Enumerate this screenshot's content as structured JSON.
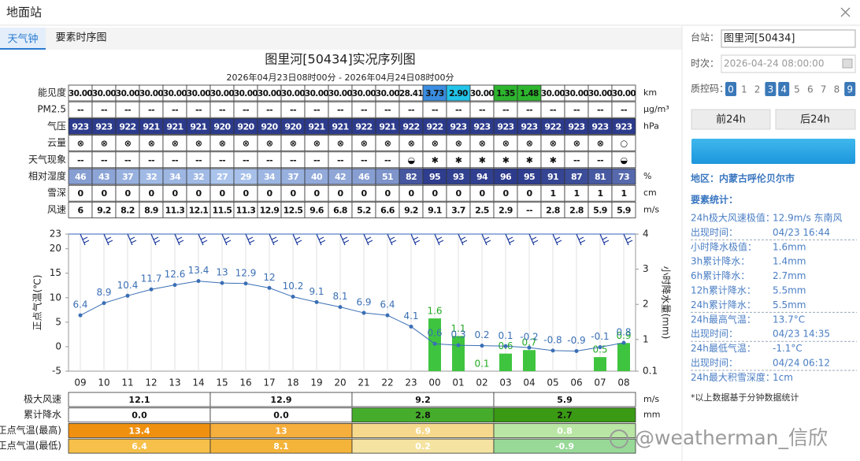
{
  "window": {
    "title": "地面站"
  },
  "tabs": [
    "天气钟",
    "要素时序图"
  ],
  "element_table": {
    "rows": [
      {
        "label": "能见度",
        "unit": "km",
        "values": [
          "30.00",
          "30.00",
          "30.00",
          "30.00",
          "30.00",
          "30.00",
          "30.00",
          "30.00",
          "30.00",
          "30.00",
          "30.00",
          "30.00",
          "30.00",
          "30.00",
          "28.41",
          "3.73",
          "2.90",
          "30.00",
          "1.35",
          "1.48",
          "30.00",
          "30.00",
          "30.00",
          "30.00"
        ]
      },
      {
        "label": "PM2.5",
        "unit": "μg/m³",
        "values": [
          "--",
          "--",
          "--",
          "--",
          "--",
          "--",
          "--",
          "--",
          "--",
          "--",
          "--",
          "--",
          "--",
          "--",
          "--",
          "--",
          "--",
          "--",
          "--",
          "--",
          "--",
          "--",
          "--",
          "--"
        ]
      },
      {
        "label": "气压",
        "unit": "hPa",
        "values": [
          "923",
          "923",
          "922",
          "921",
          "921",
          "921",
          "920",
          "920",
          "920",
          "920",
          "921",
          "921",
          "922",
          "921",
          "922",
          "922",
          "923",
          "923",
          "923",
          "923",
          "922",
          "923",
          "923",
          "923"
        ]
      },
      {
        "label": "云量",
        "values": [
          "⊗",
          "⊗",
          "⊗",
          "⊗",
          "⊗",
          "⊗",
          "⊗",
          "⊗",
          "⊗",
          "⊗",
          "⊗",
          "⊗",
          "⊗",
          "⊗",
          "⊗",
          "⊗",
          "⊗",
          "⊗",
          "⊗",
          "⊗",
          "⊗",
          "⊗",
          "⊗",
          "○"
        ]
      },
      {
        "label": "天气现象",
        "values": [
          "--",
          "--",
          "--",
          "--",
          "--",
          "--",
          "--",
          "--",
          "--",
          "--",
          "--",
          "--",
          "--",
          "--",
          "◒",
          "✱",
          "✱",
          "✱",
          "✱",
          "✱",
          "✱",
          "--",
          "--",
          "◒"
        ]
      },
      {
        "label": "相对湿度",
        "unit": "%",
        "values": [
          "46",
          "43",
          "37",
          "32",
          "34",
          "32",
          "27",
          "29",
          "34",
          "37",
          "40",
          "42",
          "46",
          "51",
          "82",
          "95",
          "93",
          "94",
          "96",
          "95",
          "91",
          "87",
          "81",
          "73"
        ]
      },
      {
        "label": "雪深",
        "unit": "cm",
        "values": [
          "0",
          "0",
          "0",
          "0",
          "0",
          "0",
          "0",
          "0",
          "0",
          "0",
          "0",
          "0",
          "0",
          "0",
          "0",
          "0",
          "0",
          "0",
          "0",
          "0",
          "1",
          "1",
          "1",
          "1"
        ]
      },
      {
        "label": "风速",
        "unit": "m/s",
        "values": [
          "6",
          "9.2",
          "8.2",
          "8.9",
          "11.3",
          "12.1",
          "11.5",
          "11.3",
          "12.9",
          "12.5",
          "9.6",
          "6.8",
          "5.2",
          "6.6",
          "9.2",
          "9.1",
          "3.7",
          "2.5",
          "2.9",
          "--",
          "2.8",
          "2.8",
          "5.9",
          "5.9"
        ]
      }
    ]
  },
  "chart_data": {
    "type": "line",
    "title": "图里河[50434]实况序列图",
    "subtitle": "2026年04月23日08时00分 - 2026年04月24日08时00分",
    "categories": [
      "09",
      "10",
      "11",
      "12",
      "13",
      "14",
      "15",
      "16",
      "17",
      "18",
      "19",
      "20",
      "21",
      "22",
      "23",
      "00",
      "01",
      "02",
      "03",
      "04",
      "05",
      "06",
      "07",
      "08"
    ],
    "ylabel": "正点气温(℃)",
    "y2label": "小时降水量(mm)",
    "ylim": [
      -5,
      23
    ],
    "yticks": [
      -5,
      0,
      5,
      10,
      15,
      20,
      23
    ],
    "y2lim": [
      0.1,
      4
    ],
    "y2ticks": [
      0.1,
      1,
      2,
      3,
      4
    ],
    "grid": true,
    "series": [
      {
        "type": "line",
        "color": "#3a6fb5",
        "values": [
          6.4,
          8.9,
          10.4,
          11.7,
          12.6,
          13.4,
          13,
          12.9,
          12,
          10.2,
          9.1,
          8.1,
          6.9,
          6.4,
          4.1,
          0.6,
          0.3,
          0.2,
          0.1,
          -0.2,
          -0.8,
          -0.9,
          -0.1,
          0.8
        ]
      },
      {
        "type": "bar",
        "axis": "y2",
        "color": "#3fc43f",
        "values": [
          null,
          null,
          null,
          null,
          null,
          null,
          null,
          null,
          null,
          null,
          null,
          null,
          null,
          null,
          null,
          1.6,
          1.1,
          0.1,
          0.6,
          0.7,
          null,
          null,
          0.5,
          0.9
        ]
      }
    ]
  },
  "summary_table": {
    "rows": [
      {
        "label": "极大风速",
        "unit": "m/s",
        "values": [
          "12.1",
          "12.9",
          "9.2",
          "5.9"
        ],
        "colors": [
          "#ffffff",
          "#ffffff",
          "#ffffff",
          "#ffffff"
        ]
      },
      {
        "label": "累计降水",
        "unit": "mm",
        "values": [
          "0.0",
          "0.0",
          "2.8",
          "2.7"
        ],
        "colors": [
          "#ffffff",
          "#ffffff",
          "#46ad2c",
          "#3a9a14"
        ]
      },
      {
        "label": "正点气温(最高)",
        "values": [
          "13.4",
          "13",
          "6.9",
          "0.8"
        ],
        "colors": [
          "#f0900f",
          "#f6ae3c",
          "#f6d98c",
          "#b9e6a4"
        ]
      },
      {
        "label": "正点气温(最低)",
        "values": [
          "6.4",
          "8.1",
          "0.2",
          "-0.9"
        ],
        "colors": [
          "#f6c04a",
          "#f4b43a",
          "#f5e3a2",
          "#98d998"
        ]
      }
    ]
  },
  "sidebar": {
    "station_label": "台站：",
    "station": "图里河[50434]",
    "time_label": "时次：",
    "time": "2026-04-24 08:00:00",
    "qc_label": "质控码：",
    "qc_codes": [
      {
        "label": "0",
        "active": true
      },
      {
        "label": "1",
        "active": false
      },
      {
        "label": "2",
        "active": false
      },
      {
        "label": "3",
        "active": true
      },
      {
        "label": "4",
        "active": true
      },
      {
        "label": "5",
        "active": false
      },
      {
        "label": "6",
        "active": false
      },
      {
        "label": "7",
        "active": false
      },
      {
        "label": "8",
        "active": false
      },
      {
        "label": "9",
        "active": true
      }
    ],
    "buttons": [
      "前24h",
      "后24h"
    ],
    "region": "地区：内蒙古呼伦贝尔市",
    "stats_title": "要素统计：",
    "stats": [
      {
        "label": "24h极大风速极值：",
        "value": "12.9m/s 东南风"
      },
      {
        "label": "出现时间：",
        "value": "04/23 16:44"
      },
      {
        "label": "小时降水极值：",
        "value": "1.6mm"
      },
      {
        "label": "3h累计降水：",
        "value": "1.4mm"
      },
      {
        "label": "6h累计降水：",
        "value": "2.7mm"
      },
      {
        "label": "12h累计降水：",
        "value": "5.5mm"
      },
      {
        "label": "24h累计降水：",
        "value": "5.5mm"
      },
      {
        "label": "24h最高气温：",
        "value": "13.7°C"
      },
      {
        "label": "出现时间：",
        "value": "04/23 14:35"
      },
      {
        "label": "24h最低气温：",
        "value": "-1.1°C"
      },
      {
        "label": "出现时间：",
        "value": "04/24 06:12"
      },
      {
        "label": "24h最大积雪深度：",
        "value": "1cm"
      }
    ],
    "note": "*以上数据基于分钟数据统计"
  },
  "watermark": "@weatherman_信欣"
}
